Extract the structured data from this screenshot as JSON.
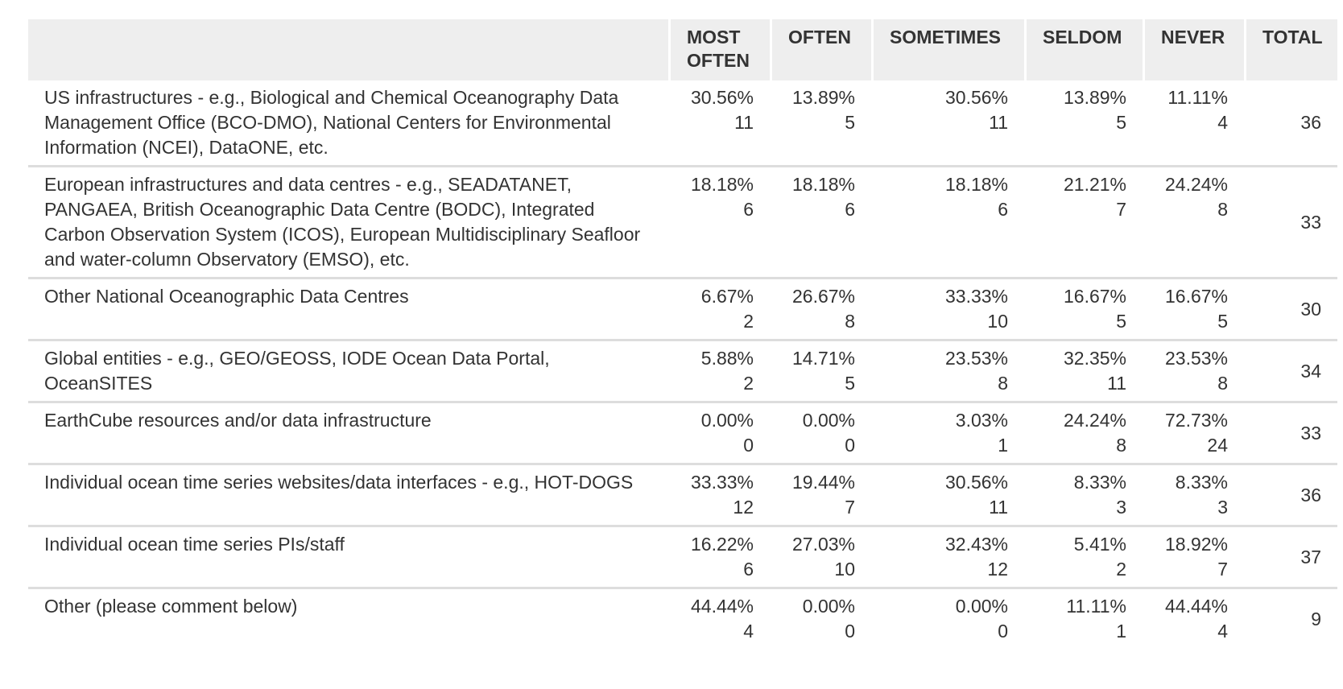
{
  "chart_data": {
    "type": "table",
    "columns": [
      "",
      "MOST OFTEN",
      "OFTEN",
      "SOMETIMES",
      "SELDOM",
      "NEVER",
      "TOTAL"
    ],
    "rows": [
      {
        "label": "US infrastructures - e.g., Biological and Chemical Oceanography Data Management Office (BCO-DMO), National Centers for Environmental Information (NCEI), DataONE, etc.",
        "cells": [
          {
            "pct": "30.56%",
            "count": "11"
          },
          {
            "pct": "13.89%",
            "count": "5"
          },
          {
            "pct": "30.56%",
            "count": "11"
          },
          {
            "pct": "13.89%",
            "count": "5"
          },
          {
            "pct": "11.11%",
            "count": "4"
          }
        ],
        "total": "36"
      },
      {
        "label": "European infrastructures and data centres - e.g., SEADATANET, PANGAEA, British Oceanographic Data Centre (BODC), Integrated Carbon Observation System (ICOS), European Multidisciplinary Seafloor and water-column Observatory (EMSO), etc.",
        "cells": [
          {
            "pct": "18.18%",
            "count": "6"
          },
          {
            "pct": "18.18%",
            "count": "6"
          },
          {
            "pct": "18.18%",
            "count": "6"
          },
          {
            "pct": "21.21%",
            "count": "7"
          },
          {
            "pct": "24.24%",
            "count": "8"
          }
        ],
        "total": "33"
      },
      {
        "label": "Other National Oceanographic Data Centres",
        "cells": [
          {
            "pct": "6.67%",
            "count": "2"
          },
          {
            "pct": "26.67%",
            "count": "8"
          },
          {
            "pct": "33.33%",
            "count": "10"
          },
          {
            "pct": "16.67%",
            "count": "5"
          },
          {
            "pct": "16.67%",
            "count": "5"
          }
        ],
        "total": "30"
      },
      {
        "label": "Global entities - e.g., GEO/GEOSS, IODE Ocean Data Portal, OceanSITES",
        "cells": [
          {
            "pct": "5.88%",
            "count": "2"
          },
          {
            "pct": "14.71%",
            "count": "5"
          },
          {
            "pct": "23.53%",
            "count": "8"
          },
          {
            "pct": "32.35%",
            "count": "11"
          },
          {
            "pct": "23.53%",
            "count": "8"
          }
        ],
        "total": "34"
      },
      {
        "label": "EarthCube resources and/or data infrastructure",
        "cells": [
          {
            "pct": "0.00%",
            "count": "0"
          },
          {
            "pct": "0.00%",
            "count": "0"
          },
          {
            "pct": "3.03%",
            "count": "1"
          },
          {
            "pct": "24.24%",
            "count": "8"
          },
          {
            "pct": "72.73%",
            "count": "24"
          }
        ],
        "total": "33"
      },
      {
        "label": "Individual ocean time series websites/data interfaces - e.g., HOT-DOGS",
        "cells": [
          {
            "pct": "33.33%",
            "count": "12"
          },
          {
            "pct": "19.44%",
            "count": "7"
          },
          {
            "pct": "30.56%",
            "count": "11"
          },
          {
            "pct": "8.33%",
            "count": "3"
          },
          {
            "pct": "8.33%",
            "count": "3"
          }
        ],
        "total": "36"
      },
      {
        "label": "Individual ocean time series PIs/staff",
        "cells": [
          {
            "pct": "16.22%",
            "count": "6"
          },
          {
            "pct": "27.03%",
            "count": "10"
          },
          {
            "pct": "32.43%",
            "count": "12"
          },
          {
            "pct": "5.41%",
            "count": "2"
          },
          {
            "pct": "18.92%",
            "count": "7"
          }
        ],
        "total": "37"
      },
      {
        "label": "Other (please comment below)",
        "cells": [
          {
            "pct": "44.44%",
            "count": "4"
          },
          {
            "pct": "0.00%",
            "count": "0"
          },
          {
            "pct": "0.00%",
            "count": "0"
          },
          {
            "pct": "11.11%",
            "count": "1"
          },
          {
            "pct": "44.44%",
            "count": "4"
          }
        ],
        "total": "9"
      }
    ]
  },
  "colors": {
    "header_bg": "#eeeeee",
    "text": "#333333",
    "row_divider": "#dddddd"
  }
}
